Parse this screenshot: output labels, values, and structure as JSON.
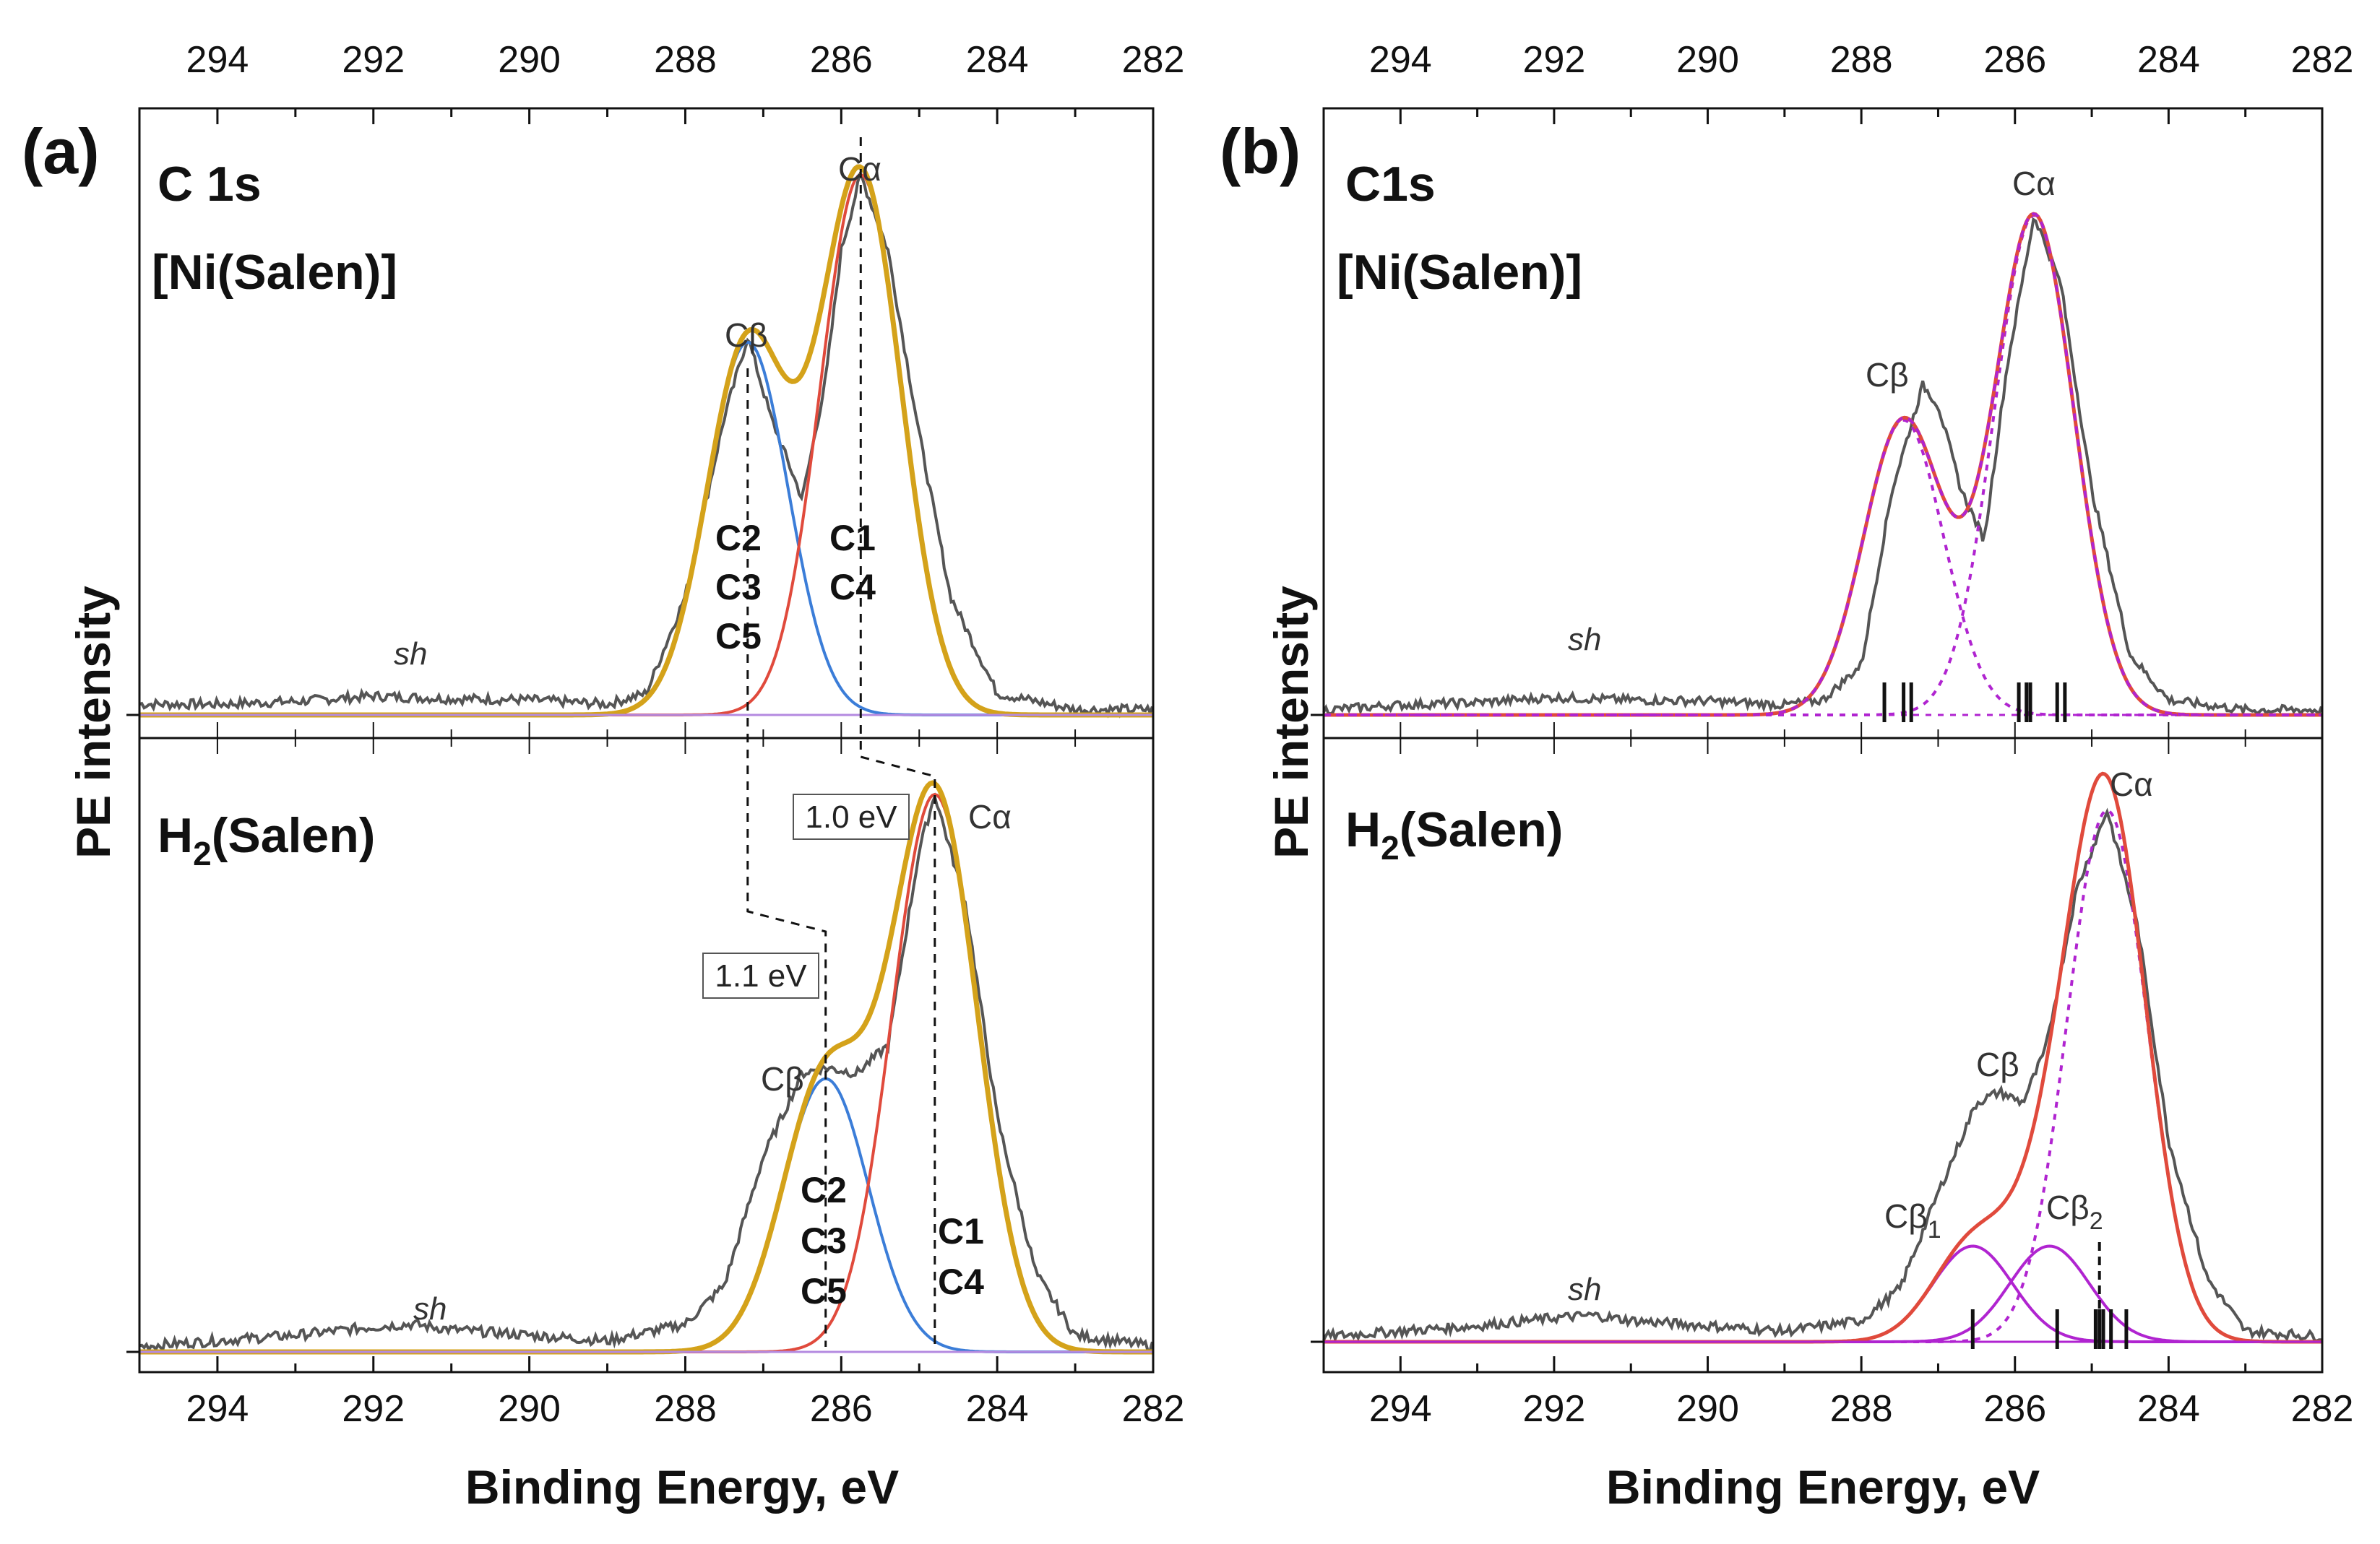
{
  "figure": {
    "panels": [
      {
        "id": "a",
        "letter": "(a)",
        "ylabel": "PE intensity",
        "xlabel": "Binding Energy, eV",
        "top": {
          "core": "C 1s",
          "sample": "[Ni(Salen)]",
          "peaks": {
            "alpha": "Cα",
            "beta": "Cβ"
          },
          "beta_atoms": [
            "C2",
            "C3",
            "C5"
          ],
          "alpha_atoms": [
            "C1",
            "C4"
          ],
          "sh": "sh"
        },
        "bottom": {
          "sample": "H2(Salen)",
          "sample_main": "H",
          "sample_sub": "2",
          "sample_rest": "(Salen)",
          "peaks": {
            "alpha": "Cα",
            "beta": "Cβ"
          },
          "beta_atoms": [
            "C2",
            "C3",
            "C5"
          ],
          "alpha_atoms": [
            "C1",
            "C4"
          ],
          "sh": "sh",
          "shift_alpha": "1.0 eV",
          "shift_beta": "1.1 eV"
        }
      },
      {
        "id": "b",
        "letter": "(b)",
        "ylabel": "PE intensity",
        "xlabel": "Binding Energy, eV",
        "top": {
          "core": "C1s",
          "sample": "[Ni(Salen)]",
          "peaks": {
            "alpha": "Cα",
            "beta": "Cβ"
          },
          "sh": "sh"
        },
        "bottom": {
          "sample": "H2(Salen)",
          "sample_main": "H",
          "sample_sub": "2",
          "sample_rest": "(Salen)",
          "peaks": {
            "alpha": "Cα",
            "beta": "Cβ",
            "beta1_main": "Cβ",
            "beta1_sub": "1",
            "beta2_main": "Cβ",
            "beta2_sub": "2"
          },
          "sh": "sh"
        }
      }
    ]
  },
  "chart_data": [
    {
      "type": "line",
      "panel": "a",
      "subplot": "top",
      "sample": "[Ni(Salen)]",
      "xlabel": "Binding Energy, eV",
      "ylabel": "PE intensity",
      "xlim": [
        295,
        282
      ],
      "x_reversed": true,
      "ylim": [
        0,
        1.05
      ],
      "xticks": [
        294,
        292,
        290,
        288,
        286,
        284,
        282
      ],
      "components": [
        {
          "role": "Cβ",
          "center": 287.2,
          "sigma": 0.52,
          "amplitude": 0.69
        },
        {
          "role": "Cα",
          "center": 285.75,
          "sigma": 0.52,
          "amplitude": 1.0
        }
      ],
      "measured_spectrum": {
        "x": [
          295,
          294,
          293,
          292,
          291,
          290,
          289,
          288.5,
          288,
          287.5,
          287.2,
          286.9,
          286.5,
          286.2,
          286.0,
          285.75,
          285.4,
          285.0,
          284.6,
          284,
          283,
          282
        ],
        "y": [
          0.02,
          0.02,
          0.025,
          0.035,
          0.03,
          0.028,
          0.02,
          0.04,
          0.22,
          0.55,
          0.7,
          0.55,
          0.4,
          0.62,
          0.86,
          1.0,
          0.86,
          0.52,
          0.22,
          0.04,
          0.01,
          0.01
        ]
      },
      "markers": {
        "Cβ": 287.2,
        "Cα": 285.75
      }
    },
    {
      "type": "line",
      "panel": "a",
      "subplot": "bottom",
      "sample": "H2(Salen)",
      "xlabel": "Binding Energy, eV",
      "ylabel": "PE intensity",
      "xlim": [
        295,
        282
      ],
      "x_reversed": true,
      "ylim": [
        0,
        1.05
      ],
      "xticks": [
        294,
        292,
        290,
        288,
        286,
        284,
        282
      ],
      "components": [
        {
          "role": "Cβ",
          "center": 286.2,
          "sigma": 0.55,
          "amplitude": 0.49
        },
        {
          "role": "Cα",
          "center": 284.8,
          "sigma": 0.55,
          "amplitude": 1.0
        }
      ],
      "measured_spectrum": {
        "x": [
          295,
          294,
          293,
          292,
          291.5,
          291,
          290,
          289,
          288,
          287.5,
          287,
          286.5,
          286.2,
          285.8,
          285.4,
          285.0,
          284.8,
          284.4,
          284.0,
          283.5,
          283,
          282
        ],
        "y": [
          0.01,
          0.02,
          0.03,
          0.045,
          0.05,
          0.04,
          0.03,
          0.02,
          0.05,
          0.12,
          0.35,
          0.5,
          0.51,
          0.5,
          0.55,
          0.9,
          1.0,
          0.8,
          0.42,
          0.14,
          0.03,
          0.01
        ]
      },
      "energy_shifts_eV": {
        "Cα": 1.0,
        "Cβ": 1.1
      },
      "markers": {
        "Cβ": 286.2,
        "Cα": 284.8
      }
    },
    {
      "type": "line",
      "panel": "b",
      "subplot": "top",
      "sample": "[Ni(Salen)]",
      "xlabel": "Binding Energy, eV",
      "ylabel": "PE intensity",
      "xlim": [
        295,
        282
      ],
      "x_reversed": true,
      "ylim": [
        0,
        1.05
      ],
      "xticks": [
        294,
        292,
        290,
        288,
        286,
        284,
        282
      ],
      "components": [
        {
          "role": "Cβ",
          "center": 287.45,
          "sigma": 0.52,
          "amplitude": 0.59
        },
        {
          "role": "Cα",
          "center": 285.75,
          "sigma": 0.52,
          "amplitude": 1.0
        }
      ],
      "measured_spectrum": {
        "x": [
          295,
          294,
          293,
          292,
          291,
          290,
          289,
          288.5,
          288,
          287.6,
          287.2,
          287.0,
          286.7,
          286.4,
          286.1,
          285.75,
          285.4,
          285.0,
          284.5,
          284,
          283,
          282
        ],
        "y": [
          0.01,
          0.02,
          0.025,
          0.035,
          0.03,
          0.028,
          0.02,
          0.03,
          0.1,
          0.45,
          0.66,
          0.62,
          0.45,
          0.35,
          0.7,
          1.0,
          0.86,
          0.45,
          0.12,
          0.03,
          0.01,
          0.01
        ]
      },
      "calculated_sticks": [
        287.7,
        287.45,
        287.35,
        285.95,
        285.85,
        285.8,
        285.45,
        285.35
      ]
    },
    {
      "type": "line",
      "panel": "b",
      "subplot": "bottom",
      "sample": "H2(Salen)",
      "xlabel": "Binding Energy, eV",
      "ylabel": "PE intensity",
      "xlim": [
        295,
        282
      ],
      "x_reversed": true,
      "ylim": [
        0,
        1.05
      ],
      "xticks": [
        294,
        292,
        290,
        288,
        286,
        284,
        282
      ],
      "components": [
        {
          "role": "Cβ1",
          "center": 286.55,
          "sigma": 0.52,
          "amplitude": 0.18
        },
        {
          "role": "Cβ2",
          "center": 285.55,
          "sigma": 0.52,
          "amplitude": 0.18
        },
        {
          "role": "Cα",
          "center": 284.8,
          "sigma": 0.52,
          "amplitude": 1.0
        }
      ],
      "measured_spectrum": {
        "x": [
          295,
          294,
          293,
          292,
          291.5,
          291,
          290,
          289,
          288,
          287.5,
          287,
          286.5,
          286.2,
          285.9,
          285.6,
          285.2,
          284.8,
          284.4,
          284.0,
          283.5,
          283,
          282
        ],
        "y": [
          0.01,
          0.02,
          0.03,
          0.045,
          0.05,
          0.04,
          0.03,
          0.02,
          0.04,
          0.1,
          0.28,
          0.45,
          0.47,
          0.45,
          0.55,
          0.85,
          1.0,
          0.78,
          0.38,
          0.12,
          0.02,
          0.01
        ]
      },
      "calculated_sticks": [
        286.55,
        285.45,
        284.95,
        284.9,
        284.85,
        284.75,
        284.55
      ],
      "dashed_marker": 284.9
    }
  ]
}
